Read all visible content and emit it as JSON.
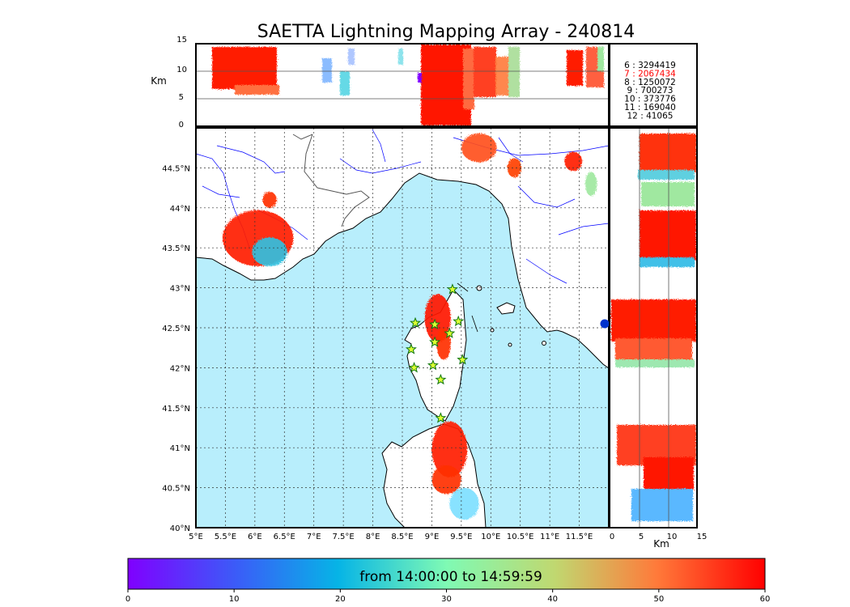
{
  "title": "SAETTA Lightning Mapping Array - 240814",
  "altitude_axis": {
    "label": "Km",
    "ticks": [
      "0",
      "5",
      "10",
      "15"
    ]
  },
  "map": {
    "lon_ticks": [
      "5°E",
      "5.5°E",
      "6°E",
      "6.5°E",
      "7°E",
      "7.5°E",
      "8°E",
      "8.5°E",
      "9°E",
      "9.5°E",
      "10°E",
      "10.5°E",
      "11°E",
      "11.5°E"
    ],
    "lat_ticks": [
      "40°N",
      "40.5°N",
      "41°N",
      "41.5°N",
      "42°N",
      "42.5°N",
      "43°N",
      "43.5°N",
      "44°N",
      "44.5°N"
    ],
    "lon_range": [
      5.0,
      12.0
    ],
    "lat_range": [
      40.0,
      45.0
    ],
    "sea_color": "#b8eefc",
    "land_color": "#ffffff",
    "river_color": "#0000ff",
    "border_color": "#555555",
    "grid": "dotted",
    "station_marker": "yellow-green star",
    "stations": [
      {
        "lon": 9.35,
        "lat": 42.98
      },
      {
        "lon": 8.72,
        "lat": 42.56
      },
      {
        "lon": 9.05,
        "lat": 42.54
      },
      {
        "lon": 9.45,
        "lat": 42.58
      },
      {
        "lon": 9.3,
        "lat": 42.43
      },
      {
        "lon": 9.05,
        "lat": 42.32
      },
      {
        "lon": 8.65,
        "lat": 42.23
      },
      {
        "lon": 9.52,
        "lat": 42.1
      },
      {
        "lon": 8.7,
        "lat": 42.0
      },
      {
        "lon": 9.02,
        "lat": 42.03
      },
      {
        "lon": 9.15,
        "lat": 41.85
      },
      {
        "lon": 9.15,
        "lat": 41.37
      }
    ]
  },
  "side_axis": {
    "label": "Km",
    "ticks": [
      "0",
      "5",
      "10",
      "15"
    ]
  },
  "legend": {
    "entries": [
      {
        "label": "6  :  3294419",
        "color": "#000000"
      },
      {
        "label": "7  :  2067434",
        "color": "#ff0000"
      },
      {
        "label": "8  :  1250072",
        "color": "#000000"
      },
      {
        "label": "9  :   700273",
        "color": "#000000"
      },
      {
        "label": "10  :   373776",
        "color": "#000000"
      },
      {
        "label": "11  :   169040",
        "color": "#000000"
      },
      {
        "label": "12  :    41065",
        "color": "#000000"
      }
    ]
  },
  "colorbar": {
    "text": "from 14:00:00 to 14:59:59",
    "ticks": [
      "0",
      "10",
      "20",
      "30",
      "40",
      "50",
      "60"
    ],
    "range": [
      0,
      60
    ],
    "colormap": "rainbow"
  },
  "lightning_clusters": [
    {
      "lon": 6.05,
      "lat": 43.62,
      "rx": 0.6,
      "ry": 0.35,
      "color": "#ff2000",
      "region": "provence"
    },
    {
      "lon": 6.25,
      "lat": 43.45,
      "rx": 0.3,
      "ry": 0.18,
      "color": "#30c0e0",
      "region": "provence-south"
    },
    {
      "lon": 6.25,
      "lat": 44.1,
      "rx": 0.12,
      "ry": 0.1,
      "color": "#ff3000",
      "region": "alps-west"
    },
    {
      "lon": 9.1,
      "lat": 42.62,
      "rx": 0.22,
      "ry": 0.3,
      "color": "#ff1800",
      "region": "corsica-north"
    },
    {
      "lon": 9.2,
      "lat": 42.3,
      "rx": 0.12,
      "ry": 0.2,
      "color": "#ff3000",
      "region": "corsica-center"
    },
    {
      "lon": 9.3,
      "lat": 40.98,
      "rx": 0.3,
      "ry": 0.35,
      "color": "#ff2000",
      "region": "sardinia-north"
    },
    {
      "lon": 9.25,
      "lat": 40.6,
      "rx": 0.25,
      "ry": 0.18,
      "color": "#ff3000",
      "region": "sardinia-east"
    },
    {
      "lon": 9.55,
      "lat": 40.3,
      "rx": 0.25,
      "ry": 0.2,
      "color": "#7ee0ff",
      "region": "sardinia-south"
    },
    {
      "lon": 9.8,
      "lat": 44.75,
      "rx": 0.3,
      "ry": 0.18,
      "color": "#ff5020",
      "region": "apennines"
    },
    {
      "lon": 10.4,
      "lat": 44.5,
      "rx": 0.12,
      "ry": 0.12,
      "color": "#ff4000",
      "region": "apennines-east"
    },
    {
      "lon": 11.4,
      "lat": 44.58,
      "rx": 0.15,
      "ry": 0.12,
      "color": "#ff2000",
      "region": "po-valley"
    },
    {
      "lon": 11.7,
      "lat": 44.3,
      "rx": 0.1,
      "ry": 0.15,
      "color": "#a0e8a0",
      "region": "po-valley-south"
    }
  ]
}
